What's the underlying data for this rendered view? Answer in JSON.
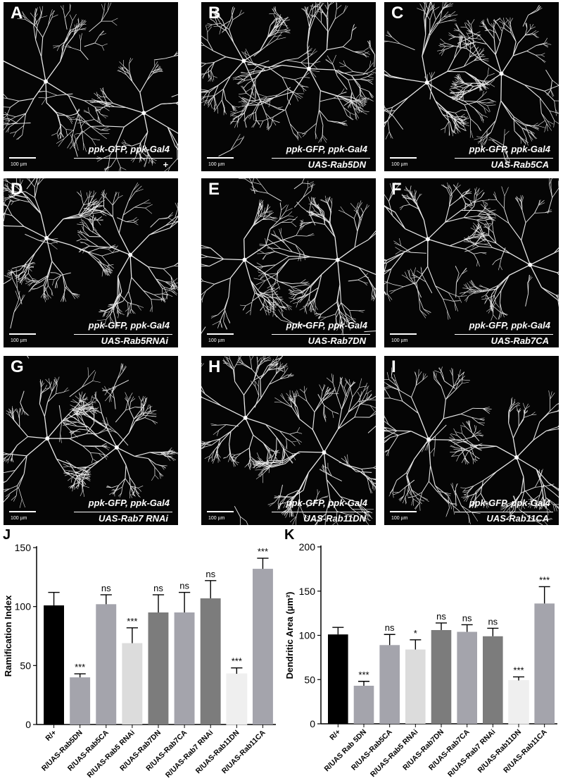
{
  "panels": [
    {
      "label": "A",
      "genotype": "ppk-GFP, ppk-Gal4",
      "cross": "+",
      "scale": "100 µm"
    },
    {
      "label": "B",
      "genotype": "ppk-GFP, ppk-Gal4",
      "cross": "UAS-Rab5DN",
      "scale": "100 µm"
    },
    {
      "label": "C",
      "genotype": "ppk-GFP, ppk-Gal4",
      "cross": "UAS-Rab5CA",
      "scale": "100 µm"
    },
    {
      "label": "D",
      "genotype": "ppk-GFP, ppk-Gal4",
      "cross": "UAS-Rab5RNAi",
      "scale": "100 µm"
    },
    {
      "label": "E",
      "genotype": "ppk-GFP, ppk-Gal4",
      "cross": "UAS-Rab7DN",
      "scale": "100 µm"
    },
    {
      "label": "F",
      "genotype": "ppk-GFP, ppk-Gal4",
      "cross": "UAS-Rab7CA",
      "scale": "100 µm"
    },
    {
      "label": "G",
      "genotype": "ppk-GFP, ppk-Gal4",
      "cross": "UAS-Rab7 RNAi",
      "scale": "100 µm"
    },
    {
      "label": "H",
      "genotype": "ppk-GFP, ppk-Gal4",
      "cross": "UAS-Rab11DN",
      "scale": "100 µm"
    },
    {
      "label": "I",
      "genotype": "ppk-GFP, ppk-Gal4",
      "cross": "UAS-Rab11CA",
      "scale": "100 µm"
    }
  ],
  "chart_data": [
    {
      "panel": "J",
      "type": "bar",
      "ylabel": "Ramification Index",
      "ylim": [
        0,
        150
      ],
      "yticks": [
        0,
        50,
        100,
        150
      ],
      "categories": [
        "R/+",
        "R/UAS-Rab5DN",
        "R/UAS-Rab5CA",
        "R/UAS-Rab5 RNAi",
        "R/UAS-Rab7DN",
        "R/UAS-Rab7CA",
        "R/UAS-Rab7 RNAi",
        "R/UAS-Rab11DN",
        "R/UAS-Rab11CA"
      ],
      "values": [
        101,
        40,
        102,
        69,
        95,
        95,
        107,
        43,
        132
      ],
      "errors": [
        11,
        3,
        8,
        13,
        15,
        17,
        15,
        5,
        9
      ],
      "significance": [
        "",
        "***",
        "ns",
        "***",
        "ns",
        "ns",
        "ns",
        "***",
        "***"
      ],
      "colors": [
        "#000000",
        "#a4a4ac",
        "#a4a4ac",
        "#dcdcdc",
        "#7c7c7c",
        "#a4a4ac",
        "#7c7c7c",
        "#efefef",
        "#a4a4ac"
      ]
    },
    {
      "panel": "K",
      "type": "bar",
      "ylabel": "Dendritic Area (µm²)",
      "ylim": [
        0,
        200
      ],
      "yticks": [
        0,
        50,
        100,
        150,
        200
      ],
      "categories": [
        "R/+",
        "R/UAS Rab 5DN",
        "R/UAS-Rab5CA",
        "R/UAS-Rab5 RNAi",
        "R/UAS-Rab7DN",
        "R/UAS-Rab7CA",
        "R/UAS-Rab7 RNAi",
        "R/UAS-Rab11DN",
        "R/UAS-Rab11CA"
      ],
      "values": [
        101,
        43,
        89,
        84,
        106,
        104,
        99,
        49,
        136
      ],
      "errors": [
        8,
        5,
        12,
        11,
        8,
        8,
        9,
        4,
        19
      ],
      "significance": [
        "",
        "***",
        "ns",
        "*",
        "ns",
        "ns",
        "ns",
        "***",
        "***"
      ],
      "colors": [
        "#000000",
        "#a4a4ac",
        "#a4a4ac",
        "#dcdcdc",
        "#7c7c7c",
        "#a4a4ac",
        "#7c7c7c",
        "#efefef",
        "#a4a4ac"
      ]
    }
  ]
}
